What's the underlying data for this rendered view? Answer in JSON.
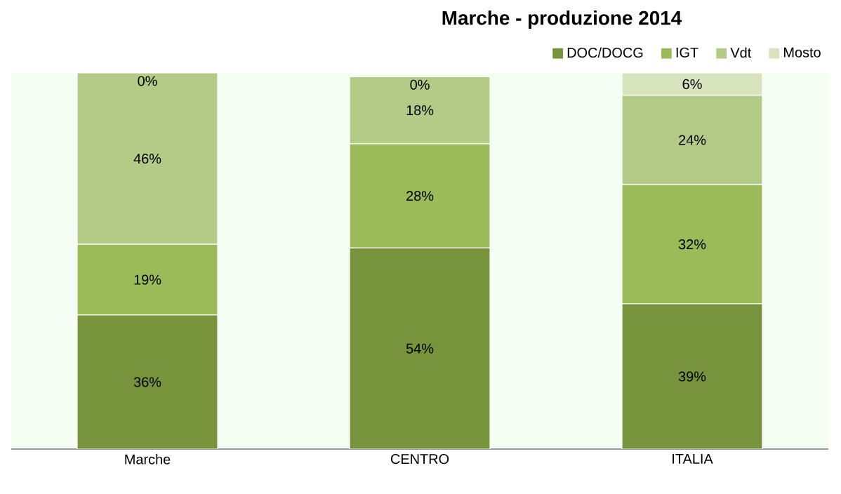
{
  "chart_data": {
    "type": "bar",
    "title": "Marche - produzione 2014",
    "stacked": true,
    "legend": "top right",
    "categories": [
      "Marche",
      "CENTRO",
      "ITALIA"
    ],
    "series": [
      {
        "name": "DOC/DOCG",
        "color": "#77933c",
        "values": [
          36,
          54,
          39
        ],
        "value_labels": [
          "36%",
          "54%",
          "39%"
        ]
      },
      {
        "name": "IGT",
        "color": "#9bbb59",
        "values": [
          19,
          28,
          32
        ],
        "value_labels": [
          "19%",
          "28%",
          "32%"
        ]
      },
      {
        "name": "Vdt",
        "color": "#b3cb87",
        "values": [
          46,
          18,
          24
        ],
        "value_labels": [
          "46%",
          "18%",
          "24%"
        ]
      },
      {
        "name": "Mosto",
        "color": "#d7e4bd",
        "values": [
          0,
          0,
          6
        ],
        "value_labels": [
          "0%",
          "0%",
          "6%"
        ]
      }
    ]
  }
}
